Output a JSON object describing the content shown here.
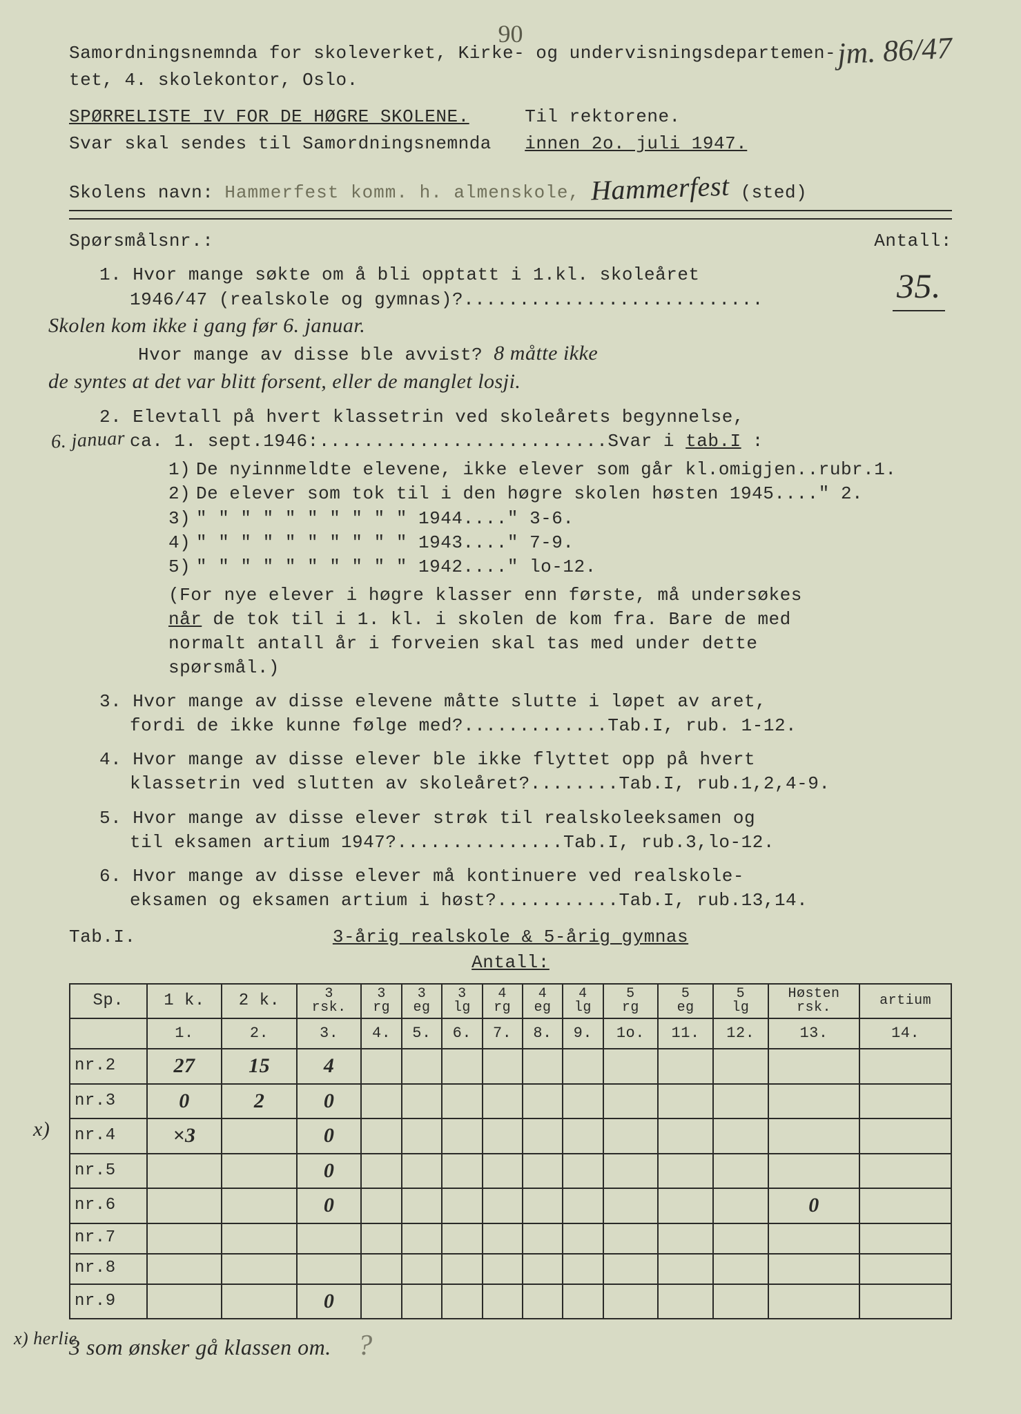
{
  "background_color": "#d8dbc5",
  "text_color": "#2a2a28",
  "page_number_top": "90",
  "annotation_top_right": "jm. 86/47",
  "header": {
    "line1": "Samordningsnemnda for skoleverket, Kirke- og undervisningsdepartemen-",
    "line2": "tet, 4. skolekontor, Oslo."
  },
  "title": "SPØRRELISTE  IV  FOR DE HØGRE SKOLENE.",
  "title_suffix": "Til rektorene.",
  "svar_line_prefix": "Svar skal sendes til Samordningsnemnda",
  "svar_line_underlined": "innen 2o. juli 1947.",
  "school_label": "Skolens navn:",
  "school_typed": "Hammerfest komm. h. almenskole,",
  "school_handwritten": "Hammerfest",
  "sted_suffix": "(sted)",
  "sp_header_left": "Spørsmålsnr.:",
  "sp_header_right": "Antall:",
  "q1": {
    "line1": "1. Hvor mange søkte om å bli opptatt i 1.kl. skoleåret",
    "line2": "1946/47 (realskole og gymnas)?...........................",
    "answer": "35.",
    "hw1": "Skolen kom ikke i gang før 6. januar.",
    "sub_prefix": "Hvor mange av disse ble avvist?",
    "hw_inline": "8 måtte ikke",
    "hw2": "de syntes at det var blitt forsent, eller de manglet losji."
  },
  "q2": {
    "line1": "2. Elevtall på hvert klassetrin ved skoleårets begynnelse,",
    "line2": "ca. 1. sept.1946:..........................Svar i",
    "line2_tab": "tab.I",
    "line2_suffix": " :",
    "margin_hw": "6. januar",
    "items": [
      {
        "n": "1)",
        "t": "De nyinnmeldte elevene, ikke elever som går kl.omigjen..rubr.1."
      },
      {
        "n": "2)",
        "t": "De elever som tok til i den høgre skolen høsten 1945....\"   2."
      },
      {
        "n": "3)",
        "t": "\"    \"      \"   \"   \"  \"  \"    \"      \"      \"    1944....\"   3-6."
      },
      {
        "n": "4)",
        "t": "\"    \"      \"   \"   \"  \"  \"    \"      \"      \"    1943....\"   7-9."
      },
      {
        "n": "5)",
        "t": "\"    \"      \"   \"   \"  \"  \"    \"      \"      \"    1942....\"   lo-12."
      }
    ],
    "paren1": "(For nye elever i høgre klasser enn første, må undersøkes",
    "paren2_prefix": "når",
    "paren2_rest": " de tok til i 1. kl. i skolen de kom fra.  Bare de med",
    "paren3": "normalt antall år i forveien skal tas med under dette",
    "paren4": "spørsmål.)"
  },
  "q3": {
    "l1": "3. Hvor mange av disse elevene måtte slutte i løpet av aret,",
    "l2": "fordi de ikke kunne følge med?.............Tab.I, rub. 1-12."
  },
  "q4": {
    "l1": "4. Hvor mange av disse elever ble ikke flyttet opp på hvert",
    "l2": "klassetrin ved slutten av skoleåret?........Tab.I, rub.1,2,4-9."
  },
  "q5": {
    "l1": "5. Hvor mange av disse elever strøk til realskoleeksamen og",
    "l2": "til eksamen artium 1947?...............Tab.I, rub.3,lo-12."
  },
  "q6": {
    "l1": "6. Hvor mange av disse elever må kontinuere ved realskole-",
    "l2": "eksamen og eksamen artium i høst?...........Tab.I, rub.13,14."
  },
  "table_caption": {
    "label": "Tab.I.",
    "title": "3-årig realskole & 5-årig gymnas",
    "subtitle": "Antall:"
  },
  "table": {
    "header1": [
      "Sp.",
      "1 k.",
      "2 k.",
      "3\nrsk.",
      "3\nrg",
      "3\neg",
      "3\nlg",
      "4\nrg",
      "4\neg",
      "4\nlg",
      "5\nrg",
      "5\neg",
      "5\nlg",
      "Høsten\nrsk.",
      "\nartium"
    ],
    "header2": [
      "",
      "1.",
      "2.",
      "3.",
      "4.",
      "5.",
      "6.",
      "7.",
      "8.",
      "9.",
      "1o.",
      "11.",
      "12.",
      "13.",
      "14."
    ],
    "rows": [
      {
        "label": "nr.2",
        "cells": [
          "27",
          "15",
          "4",
          "",
          "",
          "",
          "",
          "",
          "",
          "",
          "",
          "",
          "",
          ""
        ]
      },
      {
        "label": "nr.3",
        "cells": [
          "0",
          "2",
          "0",
          "",
          "",
          "",
          "",
          "",
          "",
          "",
          "",
          "",
          "",
          ""
        ]
      },
      {
        "label": "nr.4",
        "cells": [
          "×3",
          "",
          "0",
          "",
          "",
          "",
          "",
          "",
          "",
          "",
          "",
          "",
          "",
          ""
        ],
        "margin": "x)"
      },
      {
        "label": "nr.5",
        "cells": [
          "",
          "",
          "0",
          "",
          "",
          "",
          "",
          "",
          "",
          "",
          "",
          "",
          "",
          ""
        ]
      },
      {
        "label": "nr.6",
        "cells": [
          "",
          "",
          "0",
          "",
          "",
          "",
          "",
          "",
          "",
          "",
          "",
          "",
          "0",
          ""
        ]
      },
      {
        "label": "nr.7",
        "cells": [
          "",
          "",
          "",
          "",
          "",
          "",
          "",
          "",
          "",
          "",
          "",
          "",
          "",
          ""
        ]
      },
      {
        "label": "nr.8",
        "cells": [
          "",
          "",
          "",
          "",
          "",
          "",
          "",
          "",
          "",
          "",
          "",
          "",
          "",
          ""
        ]
      },
      {
        "label": "nr.9",
        "cells": [
          "",
          "",
          "0",
          "",
          "",
          "",
          "",
          "",
          "",
          "",
          "",
          "",
          "",
          ""
        ]
      }
    ]
  },
  "footnote_mark": "x) herlie",
  "footnote_text": "3 som ønsker gå klassen om.",
  "footnote_arrow": "?"
}
